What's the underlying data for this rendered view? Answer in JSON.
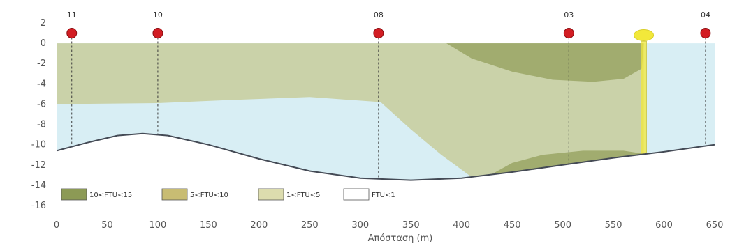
{
  "chart_data": {
    "type": "area",
    "xlabel": "Απόσταση (m)",
    "ylabel": "",
    "xlim": [
      0,
      650
    ],
    "ylim": [
      -16,
      2
    ],
    "x_ticks": [
      0,
      50,
      100,
      150,
      200,
      250,
      300,
      350,
      400,
      450,
      500,
      550,
      600,
      650
    ],
    "y_ticks": [
      2,
      0,
      -2,
      -4,
      -6,
      -8,
      -10,
      -12,
      -14,
      -16
    ],
    "grid": false,
    "stations": [
      {
        "name": "11",
        "x": 15
      },
      {
        "name": "10",
        "x": 100
      },
      {
        "name": "08",
        "x": 318
      },
      {
        "name": "03",
        "x": 506
      },
      {
        "name": "04",
        "x": 641
      }
    ],
    "buoy": {
      "x": 580
    },
    "seabed": {
      "x": [
        0,
        30,
        60,
        85,
        110,
        150,
        200,
        250,
        300,
        350,
        400,
        450,
        500,
        550,
        600,
        650
      ],
      "y": [
        -10.6,
        -9.8,
        -9.1,
        -8.9,
        -9.1,
        -10.0,
        -11.4,
        -12.6,
        -13.3,
        -13.5,
        -13.3,
        -12.7,
        -12.0,
        -11.3,
        -10.7,
        -10.0
      ]
    },
    "zones": [
      {
        "name": "1<FTU<5",
        "color": "#c9cfa2",
        "boundary": [
          [
            0,
            0
          ],
          [
            380,
            0
          ],
          [
            580,
            0
          ],
          [
            580,
            -11.0
          ],
          [
            550,
            -11.3
          ],
          [
            500,
            -12.0
          ],
          [
            450,
            -12.7
          ],
          [
            410,
            -13.2
          ],
          [
            380,
            -11.0
          ],
          [
            350,
            -8.5
          ],
          [
            320,
            -5.8
          ],
          [
            250,
            -5.3
          ],
          [
            170,
            -5.6
          ],
          [
            100,
            -5.9
          ],
          [
            0,
            -6.0
          ]
        ]
      },
      {
        "name": "10<FTU<15",
        "color": "#9da86a",
        "boundary": [
          [
            385,
            0
          ],
          [
            580,
            0
          ],
          [
            578,
            -2.5
          ],
          [
            560,
            -3.5
          ],
          [
            530,
            -3.8
          ],
          [
            490,
            -3.6
          ],
          [
            450,
            -2.8
          ],
          [
            410,
            -1.5
          ],
          [
            385,
            0
          ]
        ]
      },
      {
        "name": "10<FTU<15",
        "color": "#9da86a",
        "boundary": [
          [
            430,
            -12.9
          ],
          [
            450,
            -11.8
          ],
          [
            480,
            -11.0
          ],
          [
            520,
            -10.6
          ],
          [
            560,
            -10.6
          ],
          [
            580,
            -10.9
          ],
          [
            580,
            -11.0
          ],
          [
            550,
            -11.3
          ],
          [
            500,
            -12.0
          ],
          [
            450,
            -12.7
          ],
          [
            430,
            -12.9
          ]
        ]
      }
    ],
    "legend": [
      {
        "label": "10<FTU<15",
        "color": "#8c9a55"
      },
      {
        "label": "5<FTU<10",
        "color": "#c8bc73"
      },
      {
        "label": "1<FTU<5",
        "color": "#dcdcae"
      },
      {
        "label": "FTU<1",
        "color": "#ffffff"
      }
    ],
    "legend_position": "bottom-left",
    "colors": {
      "water_clear": "#d8eef4",
      "station_dot": "#d21d23",
      "buoy": "#f2e83a",
      "seabed_line": "#444a55"
    }
  }
}
